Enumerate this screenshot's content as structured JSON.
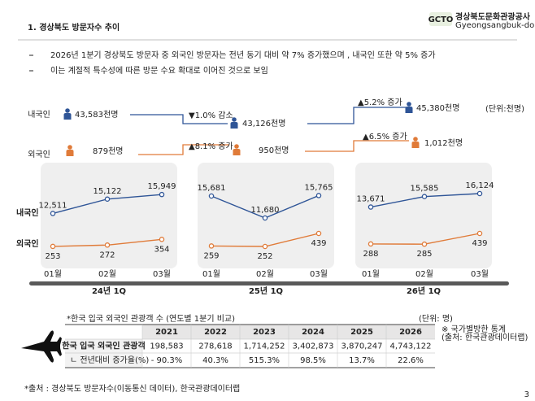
{
  "header": {
    "title": "1. 경상북도 방문자수 추이",
    "logo_mark": "GCTO",
    "logo": "경상북도문화관광공사",
    "logo_sub": "Gyeongsangbuk-do Culture & Tourism Organization"
  },
  "bullets": [
    "2026년 1분기 경상북도 방문자 중 외국인 방문자는 전년 동기 대비 약 7% 증가했으며 , 내국인 또한 약 5% 증가",
    "이는 계절적 특수성에 따른 방문 수요 확대로 이어진 것으로 보임"
  ],
  "summary": {
    "unit": "(단위:천명)",
    "rows": [
      {
        "label": "내국인",
        "values": [
          "43,583천명",
          "43,126천명",
          "45,380천명"
        ],
        "changes": [
          "▼1.0% 감소",
          "▲5.2% 증가"
        ]
      },
      {
        "label": "외국인",
        "values": [
          "879천명",
          "950천명",
          "1,012천명"
        ],
        "changes": [
          "▲8.1% 증가",
          "▲6.5% 증가"
        ]
      }
    ]
  },
  "charts": {
    "series_labels": [
      "내국인",
      "외국인"
    ],
    "panels": [
      {
        "period": "24년 1Q",
        "categories": [
          "01월",
          "02월",
          "03월"
        ],
        "domestic": {
          "values": [
            12511,
            15122,
            15949
          ],
          "value_labels": [
            "12,511",
            "15,122",
            "15,949"
          ]
        },
        "foreign": {
          "values": [
            253,
            272,
            354
          ]
        }
      },
      {
        "period": "25년 1Q",
        "categories": [
          "01월",
          "02월",
          "03월"
        ],
        "domestic": {
          "values": [
            15681,
            11680,
            15765
          ],
          "value_labels": [
            "15,681",
            "11,680",
            "15,765"
          ]
        },
        "foreign": {
          "values": [
            259,
            252,
            439
          ]
        }
      },
      {
        "period": "26년 1Q",
        "categories": [
          "01월",
          "02월",
          "03월"
        ],
        "domestic": {
          "values": [
            13671,
            15585,
            16124
          ],
          "value_labels": [
            "13,671",
            "15,585",
            "16,124"
          ]
        },
        "foreign": {
          "values": [
            288,
            285,
            439
          ]
        }
      }
    ]
  },
  "table": {
    "title": "*한국 입국 외국인 관광객 수 (연도별 1분기 비교)",
    "unit": "(단위: 명)",
    "headers": [
      "2021",
      "2022",
      "2023",
      "2024",
      "2025",
      "2026"
    ],
    "rows": [
      {
        "label": "한국 입국 외국인 관광객",
        "cells": [
          "198,583",
          "278,618",
          "1,714,252",
          "3,402,873",
          "3,870,247",
          "4,743,122"
        ]
      },
      {
        "label": "ㄴ 전년대비 증가율(%)",
        "cells": [
          "- 90.3%",
          "40.3%",
          "515.3%",
          "98.5%",
          "13.7%",
          "22.6%"
        ]
      }
    ],
    "note": [
      "※ 국가별방한 통계",
      "(출처: 한국관광데이터랩)"
    ]
  },
  "footer": {
    "source": "*출처 : 경상북도 방문자수(이동통신 데이터), 한국관광데이터랩",
    "page": "3"
  }
}
